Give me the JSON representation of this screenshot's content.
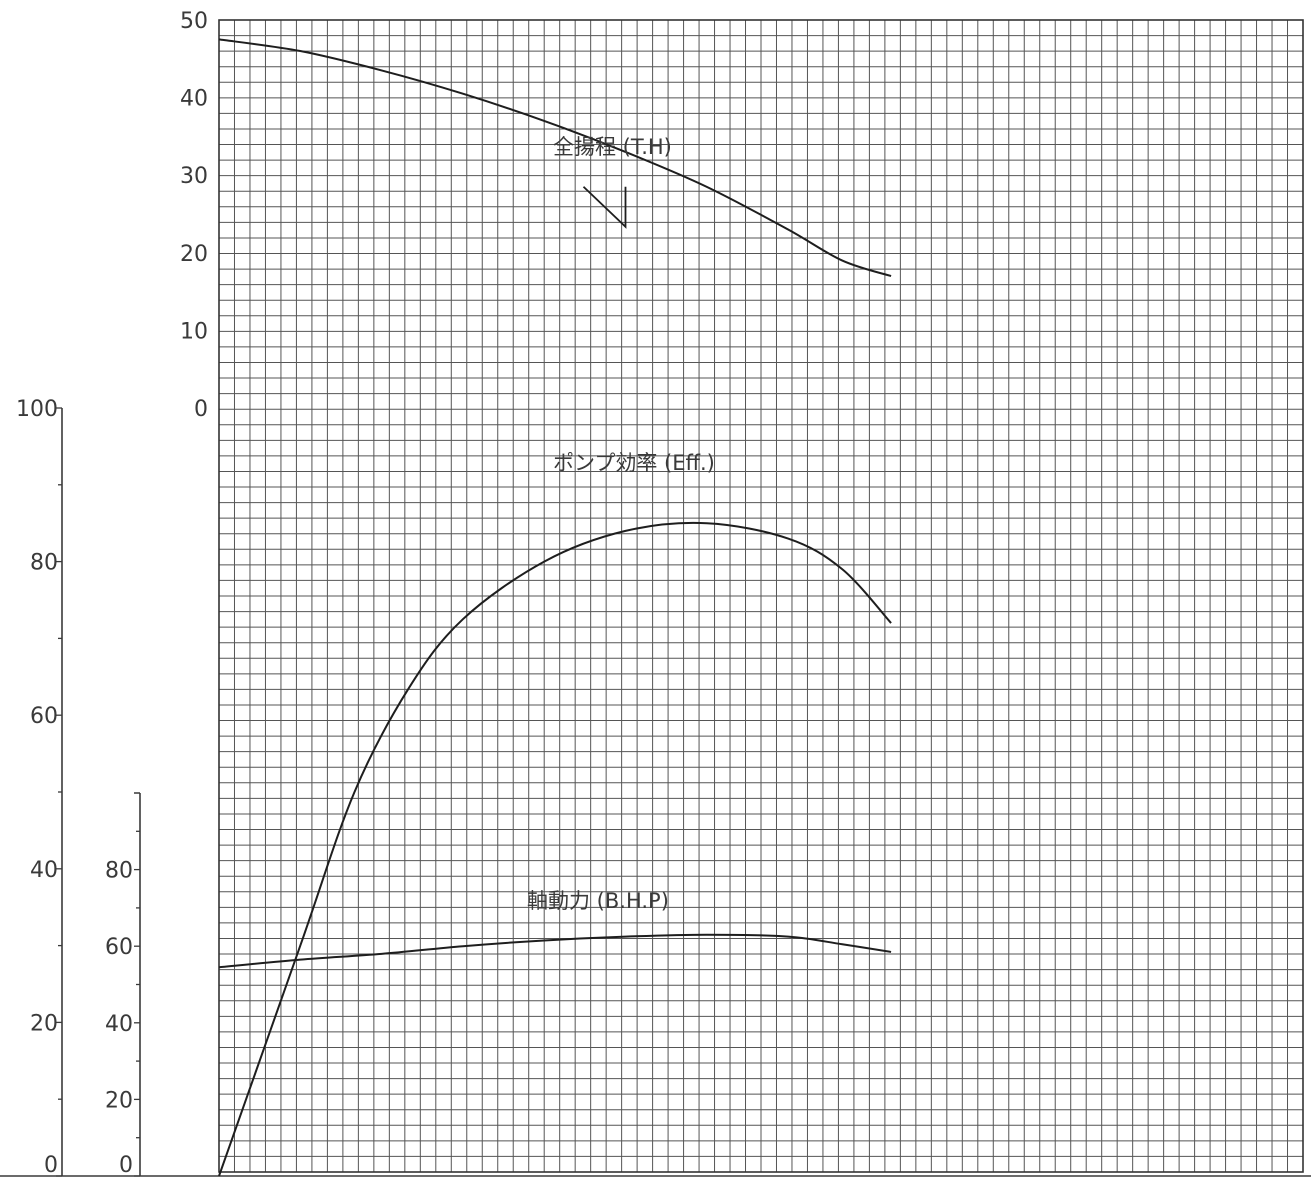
{
  "chart_data": {
    "type": "line",
    "title": "",
    "grid": true,
    "x": {
      "range": [
        0,
        100
      ],
      "ticks": []
    },
    "axes": {
      "head": {
        "range": [
          0,
          50
        ],
        "ticks": [
          "0",
          "10",
          "20",
          "30",
          "40",
          "50"
        ]
      },
      "efficiency": {
        "range": [
          0,
          100
        ],
        "ticks": [
          "0",
          "20",
          "40",
          "60",
          "80",
          "100"
        ]
      },
      "power": {
        "range": [
          0,
          100
        ],
        "ticks": [
          "0",
          "20",
          "40",
          "60",
          "80"
        ]
      }
    },
    "series": [
      {
        "name": "全揚程 (T.H)",
        "axis": "head",
        "points": [
          [
            0,
            47.5
          ],
          [
            7.5,
            46
          ],
          [
            15,
            43.5
          ],
          [
            22.5,
            40.5
          ],
          [
            30,
            37
          ],
          [
            37.5,
            33
          ],
          [
            45,
            28.5
          ],
          [
            52.5,
            23
          ],
          [
            57.5,
            19
          ],
          [
            62,
            17
          ]
        ]
      },
      {
        "name": "ポンプ効率 (Eff.)",
        "axis": "efficiency",
        "points": [
          [
            0,
            0
          ],
          [
            7.5,
            30
          ],
          [
            12.5,
            50
          ],
          [
            17.5,
            63.5
          ],
          [
            22.5,
            72.5
          ],
          [
            30,
            80
          ],
          [
            37.5,
            84
          ],
          [
            45,
            85
          ],
          [
            52.5,
            83
          ],
          [
            57.5,
            79
          ],
          [
            62,
            72
          ]
        ]
      },
      {
        "name": "軸動力 (B.H.P)",
        "axis": "power",
        "points": [
          [
            0,
            54.5
          ],
          [
            7.5,
            56.5
          ],
          [
            15,
            58
          ],
          [
            22.5,
            60
          ],
          [
            30,
            61.5
          ],
          [
            37.5,
            62.5
          ],
          [
            45,
            63
          ],
          [
            52.5,
            62.5
          ],
          [
            57.5,
            60.5
          ],
          [
            62,
            58.5
          ]
        ]
      }
    ],
    "annotations": [
      {
        "type": "head-marker",
        "at": [
          37.5,
          28
        ]
      }
    ]
  }
}
